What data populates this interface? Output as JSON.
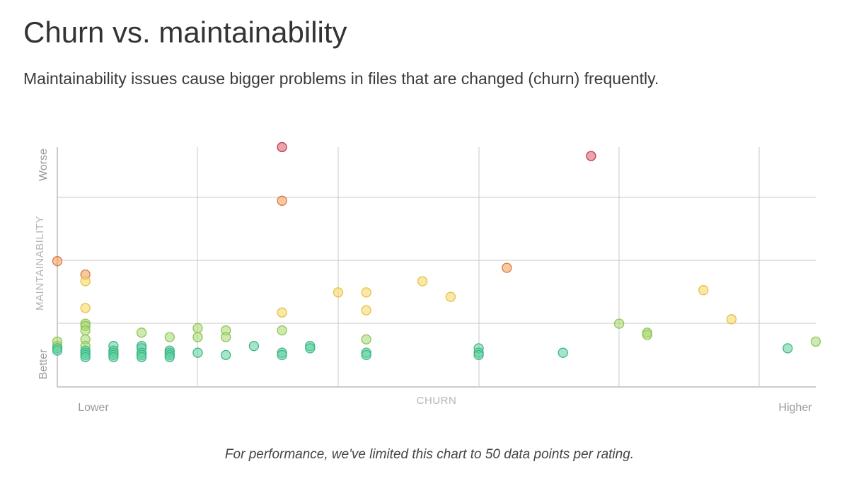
{
  "header": {
    "title": "Churn vs. maintainability",
    "subtitle": "Maintainability issues cause bigger problems in files that are changed (churn) frequently."
  },
  "footnote": "For performance, we've limited this chart to 50 data points per rating.",
  "chart_data": {
    "type": "scatter",
    "xlabel": "CHURN",
    "ylabel": "MAINTAINABILITY",
    "x_tick_labels": {
      "low": "Lower",
      "high": "Higher"
    },
    "y_tick_labels": {
      "low": "Better",
      "high": "Worse"
    },
    "xlim": [
      0,
      27
    ],
    "ylim": [
      0,
      100
    ],
    "grid": true,
    "rating_colors": {
      "A": "#5fd0a0",
      "B": "#a8d870",
      "C": "#f5d562",
      "D": "#ee9a5a",
      "F": "#d85a6a"
    },
    "points": [
      {
        "x": 0,
        "y": 49,
        "rating": "D"
      },
      {
        "x": 0,
        "y": 13,
        "rating": "B"
      },
      {
        "x": 0,
        "y": 11,
        "rating": "B"
      },
      {
        "x": 0,
        "y": 10,
        "rating": "A"
      },
      {
        "x": 0,
        "y": 9,
        "rating": "A"
      },
      {
        "x": 1,
        "y": 43,
        "rating": "D"
      },
      {
        "x": 1,
        "y": 40,
        "rating": "C"
      },
      {
        "x": 1,
        "y": 28,
        "rating": "C"
      },
      {
        "x": 1,
        "y": 21,
        "rating": "B"
      },
      {
        "x": 1,
        "y": 20,
        "rating": "B"
      },
      {
        "x": 1,
        "y": 18,
        "rating": "B"
      },
      {
        "x": 1,
        "y": 14,
        "rating": "B"
      },
      {
        "x": 1,
        "y": 11,
        "rating": "B"
      },
      {
        "x": 1,
        "y": 9,
        "rating": "A"
      },
      {
        "x": 1,
        "y": 8,
        "rating": "A"
      },
      {
        "x": 1,
        "y": 7,
        "rating": "A"
      },
      {
        "x": 1,
        "y": 6,
        "rating": "A"
      },
      {
        "x": 2,
        "y": 11,
        "rating": "A"
      },
      {
        "x": 2,
        "y": 9,
        "rating": "A"
      },
      {
        "x": 2,
        "y": 8,
        "rating": "A"
      },
      {
        "x": 2,
        "y": 7,
        "rating": "A"
      },
      {
        "x": 2,
        "y": 6,
        "rating": "A"
      },
      {
        "x": 3,
        "y": 17,
        "rating": "B"
      },
      {
        "x": 3,
        "y": 11,
        "rating": "A"
      },
      {
        "x": 3,
        "y": 10,
        "rating": "A"
      },
      {
        "x": 3,
        "y": 8,
        "rating": "A"
      },
      {
        "x": 3,
        "y": 7,
        "rating": "A"
      },
      {
        "x": 3,
        "y": 6,
        "rating": "A"
      },
      {
        "x": 4,
        "y": 15,
        "rating": "B"
      },
      {
        "x": 4,
        "y": 9,
        "rating": "A"
      },
      {
        "x": 4,
        "y": 8,
        "rating": "A"
      },
      {
        "x": 4,
        "y": 7,
        "rating": "A"
      },
      {
        "x": 4,
        "y": 6,
        "rating": "A"
      },
      {
        "x": 5,
        "y": 19,
        "rating": "B"
      },
      {
        "x": 5,
        "y": 15,
        "rating": "B"
      },
      {
        "x": 5,
        "y": 8,
        "rating": "A"
      },
      {
        "x": 6,
        "y": 18,
        "rating": "B"
      },
      {
        "x": 6,
        "y": 15,
        "rating": "B"
      },
      {
        "x": 6,
        "y": 7,
        "rating": "A"
      },
      {
        "x": 7,
        "y": 11,
        "rating": "A"
      },
      {
        "x": 8,
        "y": 100,
        "rating": "F"
      },
      {
        "x": 8,
        "y": 76,
        "rating": "D"
      },
      {
        "x": 8,
        "y": 26,
        "rating": "C"
      },
      {
        "x": 8,
        "y": 18,
        "rating": "B"
      },
      {
        "x": 8,
        "y": 8,
        "rating": "A"
      },
      {
        "x": 8,
        "y": 7,
        "rating": "A"
      },
      {
        "x": 9,
        "y": 11,
        "rating": "A"
      },
      {
        "x": 9,
        "y": 10,
        "rating": "A"
      },
      {
        "x": 10,
        "y": 35,
        "rating": "C"
      },
      {
        "x": 11,
        "y": 35,
        "rating": "C"
      },
      {
        "x": 11,
        "y": 27,
        "rating": "C"
      },
      {
        "x": 11,
        "y": 14,
        "rating": "B"
      },
      {
        "x": 11,
        "y": 8,
        "rating": "A"
      },
      {
        "x": 11,
        "y": 7,
        "rating": "A"
      },
      {
        "x": 13,
        "y": 40,
        "rating": "C"
      },
      {
        "x": 14,
        "y": 33,
        "rating": "C"
      },
      {
        "x": 15,
        "y": 10,
        "rating": "A"
      },
      {
        "x": 15,
        "y": 8,
        "rating": "A"
      },
      {
        "x": 15,
        "y": 7,
        "rating": "A"
      },
      {
        "x": 16,
        "y": 46,
        "rating": "D"
      },
      {
        "x": 18,
        "y": 8,
        "rating": "A"
      },
      {
        "x": 19,
        "y": 96,
        "rating": "F"
      },
      {
        "x": 20,
        "y": 21,
        "rating": "B"
      },
      {
        "x": 21,
        "y": 17,
        "rating": "B"
      },
      {
        "x": 21,
        "y": 16,
        "rating": "B"
      },
      {
        "x": 23,
        "y": 36,
        "rating": "C"
      },
      {
        "x": 24,
        "y": 23,
        "rating": "C"
      },
      {
        "x": 26,
        "y": 10,
        "rating": "A"
      },
      {
        "x": 27,
        "y": 13,
        "rating": "B"
      }
    ]
  }
}
